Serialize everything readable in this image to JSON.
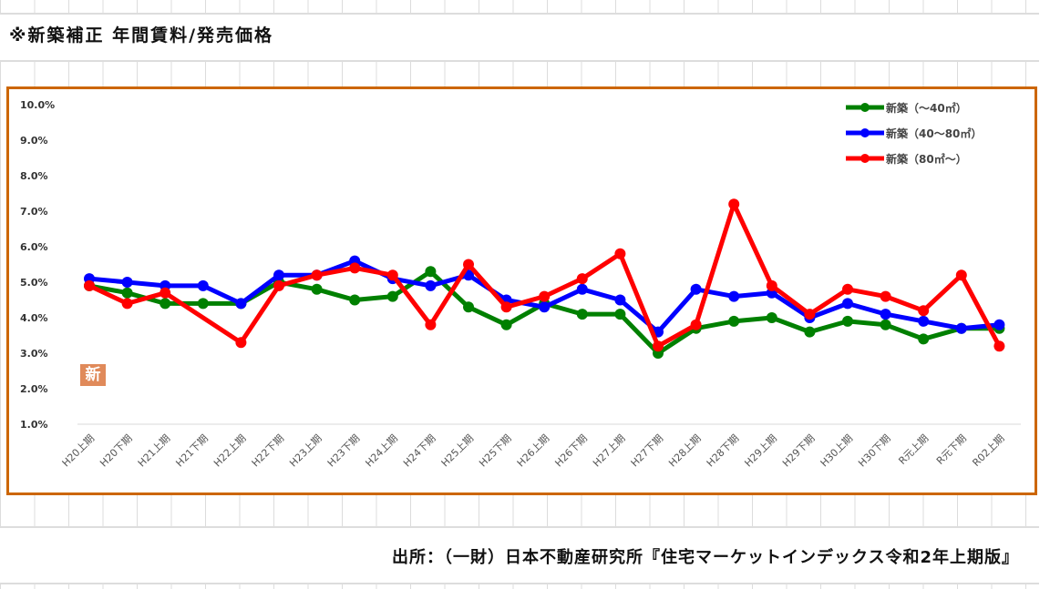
{
  "title": "※新築補正 年間賃料/発売価格",
  "source": "出所：（一財）日本不動産研究所『住宅マーケットインデックス令和2年上期版』",
  "badge": "新",
  "chart_data": {
    "type": "line",
    "title": "",
    "xlabel": "",
    "ylabel": "",
    "ylim": [
      1.0,
      10.0
    ],
    "yticks": [
      "1.0%",
      "2.0%",
      "3.0%",
      "4.0%",
      "5.0%",
      "6.0%",
      "7.0%",
      "8.0%",
      "9.0%",
      "10.0%"
    ],
    "grid": false,
    "legend_position": "top-right",
    "categories": [
      "H20上期",
      "H20下期",
      "H21上期",
      "H21下期",
      "H22上期",
      "H22下期",
      "H23上期",
      "H23下期",
      "H24上期",
      "H24下期",
      "H25上期",
      "H25下期",
      "H26上期",
      "H26下期",
      "H27上期",
      "H27下期",
      "H28上期",
      "H28下期",
      "H29上期",
      "H29下期",
      "H30上期",
      "H30下期",
      "R元上期",
      "R元下期",
      "R02上期"
    ],
    "series": [
      {
        "name": "新築（～40㎡）",
        "color": "#008000",
        "values": [
          4.9,
          4.7,
          4.4,
          4.4,
          4.4,
          5.0,
          4.8,
          4.5,
          4.6,
          5.3,
          4.3,
          3.8,
          4.4,
          4.1,
          4.1,
          3.0,
          3.7,
          3.9,
          4.0,
          3.6,
          3.9,
          3.8,
          3.4,
          3.7,
          3.7
        ]
      },
      {
        "name": "新築（40～80㎡）",
        "color": "#0000ff",
        "values": [
          5.1,
          5.0,
          4.9,
          4.9,
          4.4,
          5.2,
          5.2,
          5.6,
          5.1,
          4.9,
          5.2,
          4.5,
          4.3,
          4.8,
          4.5,
          3.6,
          4.8,
          4.6,
          4.7,
          4.0,
          4.4,
          4.1,
          3.9,
          3.7,
          3.8
        ]
      },
      {
        "name": "新築（80㎡～）",
        "color": "#ff0000",
        "values": [
          4.9,
          4.4,
          4.7,
          null,
          3.3,
          4.9,
          5.2,
          5.4,
          5.2,
          3.8,
          5.5,
          4.3,
          4.6,
          5.1,
          5.8,
          3.2,
          3.8,
          7.2,
          4.9,
          4.1,
          4.8,
          4.6,
          4.2,
          5.2,
          3.2
        ]
      }
    ]
  }
}
